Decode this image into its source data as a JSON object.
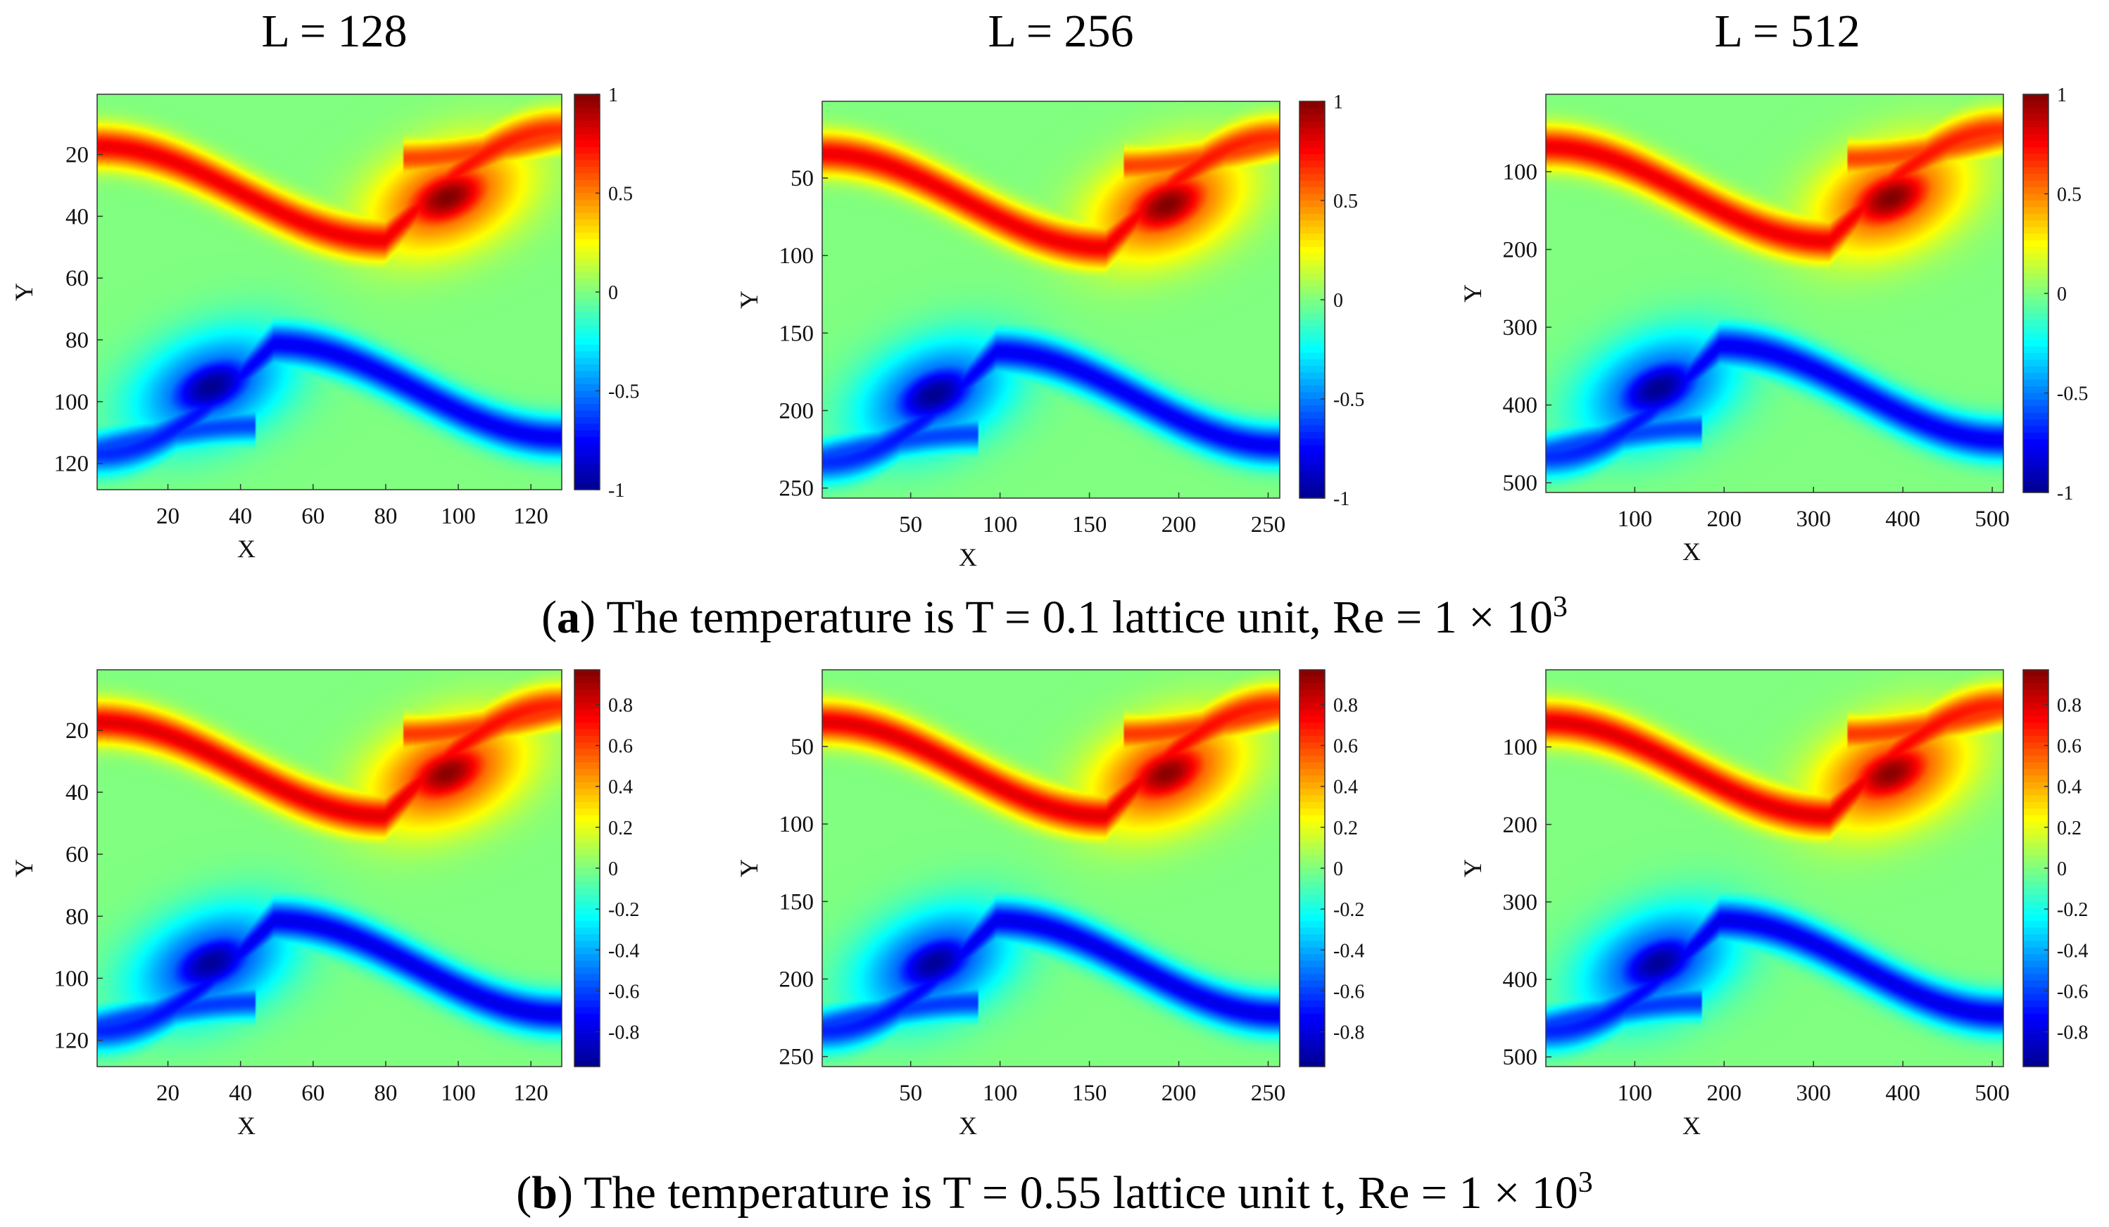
{
  "figure": {
    "column_titles": [
      "L = 128",
      "L = 256",
      "L = 512"
    ],
    "captions": [
      {
        "letter": "a",
        "text_before": "(",
        "text_after": ") The temperature is T = 0.1 lattice unit, Re = 1 × 10",
        "sup": "3"
      },
      {
        "letter": "b",
        "text_before": "(",
        "text_after": ") The temperature is T = 0.55 lattice unit t, Re = 1 × 10",
        "sup": "3"
      }
    ],
    "colormap": [
      "#00008f",
      "#0000ff",
      "#0080ff",
      "#00ffff",
      "#80ff80",
      "#ffff00",
      "#ff8000",
      "#ff0000",
      "#800000"
    ]
  },
  "chart_data": [
    {
      "id": "a1",
      "type": "heatmap",
      "row": "a",
      "L": 128,
      "xlabel": "X",
      "ylabel": "Y",
      "xlim": [
        0.5,
        128.5
      ],
      "ylim": [
        0.5,
        128.5
      ],
      "y_reversed": true,
      "xticks": [
        20,
        40,
        60,
        80,
        100,
        120
      ],
      "yticks": [
        20,
        40,
        60,
        80,
        100,
        120
      ],
      "clim": [
        -1,
        1
      ],
      "cticks": [
        -1,
        -0.5,
        0,
        0.5,
        1
      ],
      "ctick_labels": [
        "-1",
        "-0.5",
        "0",
        "0.5",
        "1"
      ],
      "vortex_peak": 1.0,
      "vortex_centers": [
        [
          97,
          34
        ],
        [
          32,
          96
        ]
      ]
    },
    {
      "id": "a2",
      "type": "heatmap",
      "row": "a",
      "L": 256,
      "xlabel": "X",
      "ylabel": "Y",
      "xlim": [
        0.5,
        256.5
      ],
      "ylim": [
        0.5,
        256.5
      ],
      "y_reversed": true,
      "xticks": [
        50,
        100,
        150,
        200,
        250
      ],
      "yticks": [
        50,
        100,
        150,
        200,
        250
      ],
      "clim": [
        -1,
        1
      ],
      "cticks": [
        -1,
        -0.5,
        0,
        0.5,
        1
      ],
      "ctick_labels": [
        "-1",
        "-0.5",
        "0",
        "0.5",
        "1"
      ],
      "vortex_peak": 1.0,
      "vortex_centers": [
        [
          194,
          68
        ],
        [
          64,
          192
        ]
      ]
    },
    {
      "id": "a3",
      "type": "heatmap",
      "row": "a",
      "L": 512,
      "xlabel": "X",
      "ylabel": "Y",
      "xlim": [
        0.5,
        512.5
      ],
      "ylim": [
        0.5,
        512.5
      ],
      "y_reversed": true,
      "xticks": [
        100,
        200,
        300,
        400,
        500
      ],
      "yticks": [
        100,
        200,
        300,
        400,
        500
      ],
      "clim": [
        -1,
        1
      ],
      "cticks": [
        -1,
        -0.5,
        0,
        0.5,
        1
      ],
      "ctick_labels": [
        "-1",
        "-0.5",
        "0",
        "0.5",
        "1"
      ],
      "vortex_peak": 1.0,
      "vortex_centers": [
        [
          388,
          136
        ],
        [
          128,
          384
        ]
      ]
    },
    {
      "id": "b1",
      "type": "heatmap",
      "row": "b",
      "L": 128,
      "xlabel": "X",
      "ylabel": "Y",
      "xlim": [
        0.5,
        128.5
      ],
      "ylim": [
        0.5,
        128.5
      ],
      "y_reversed": true,
      "xticks": [
        20,
        40,
        60,
        80,
        100,
        120
      ],
      "yticks": [
        20,
        40,
        60,
        80,
        100,
        120
      ],
      "clim": [
        -0.97,
        0.97
      ],
      "cticks": [
        -0.8,
        -0.6,
        -0.4,
        -0.2,
        0,
        0.2,
        0.4,
        0.6,
        0.8
      ],
      "ctick_labels": [
        "-0.8",
        "-0.6",
        "-0.4",
        "-0.2",
        "0",
        "0.2",
        "0.4",
        "0.6",
        "0.8"
      ],
      "vortex_peak": 0.95,
      "vortex_centers": [
        [
          97,
          34
        ],
        [
          32,
          96
        ]
      ]
    },
    {
      "id": "b2",
      "type": "heatmap",
      "row": "b",
      "L": 256,
      "xlabel": "X",
      "ylabel": "Y",
      "xlim": [
        0.5,
        256.5
      ],
      "ylim": [
        0.5,
        256.5
      ],
      "y_reversed": true,
      "xticks": [
        50,
        100,
        150,
        200,
        250
      ],
      "yticks": [
        50,
        100,
        150,
        200,
        250
      ],
      "clim": [
        -0.97,
        0.97
      ],
      "cticks": [
        -0.8,
        -0.6,
        -0.4,
        -0.2,
        0,
        0.2,
        0.4,
        0.6,
        0.8
      ],
      "ctick_labels": [
        "-0.8",
        "-0.6",
        "-0.4",
        "-0.2",
        "0",
        "0.2",
        "0.4",
        "0.6",
        "0.8"
      ],
      "vortex_peak": 0.95,
      "vortex_centers": [
        [
          194,
          68
        ],
        [
          64,
          192
        ]
      ]
    },
    {
      "id": "b3",
      "type": "heatmap",
      "row": "b",
      "L": 512,
      "xlabel": "X",
      "ylabel": "Y",
      "xlim": [
        0.5,
        512.5
      ],
      "ylim": [
        0.5,
        512.5
      ],
      "y_reversed": true,
      "xticks": [
        100,
        200,
        300,
        400,
        500
      ],
      "yticks": [
        100,
        200,
        300,
        400,
        500
      ],
      "clim": [
        -0.97,
        0.97
      ],
      "cticks": [
        -0.8,
        -0.6,
        -0.4,
        -0.2,
        0,
        0.2,
        0.4,
        0.6,
        0.8
      ],
      "ctick_labels": [
        "-0.8",
        "-0.6",
        "-0.4",
        "-0.2",
        "0",
        "0.2",
        "0.4",
        "0.6",
        "0.8"
      ],
      "vortex_peak": 0.95,
      "vortex_centers": [
        [
          388,
          136
        ],
        [
          128,
          384
        ]
      ]
    }
  ]
}
